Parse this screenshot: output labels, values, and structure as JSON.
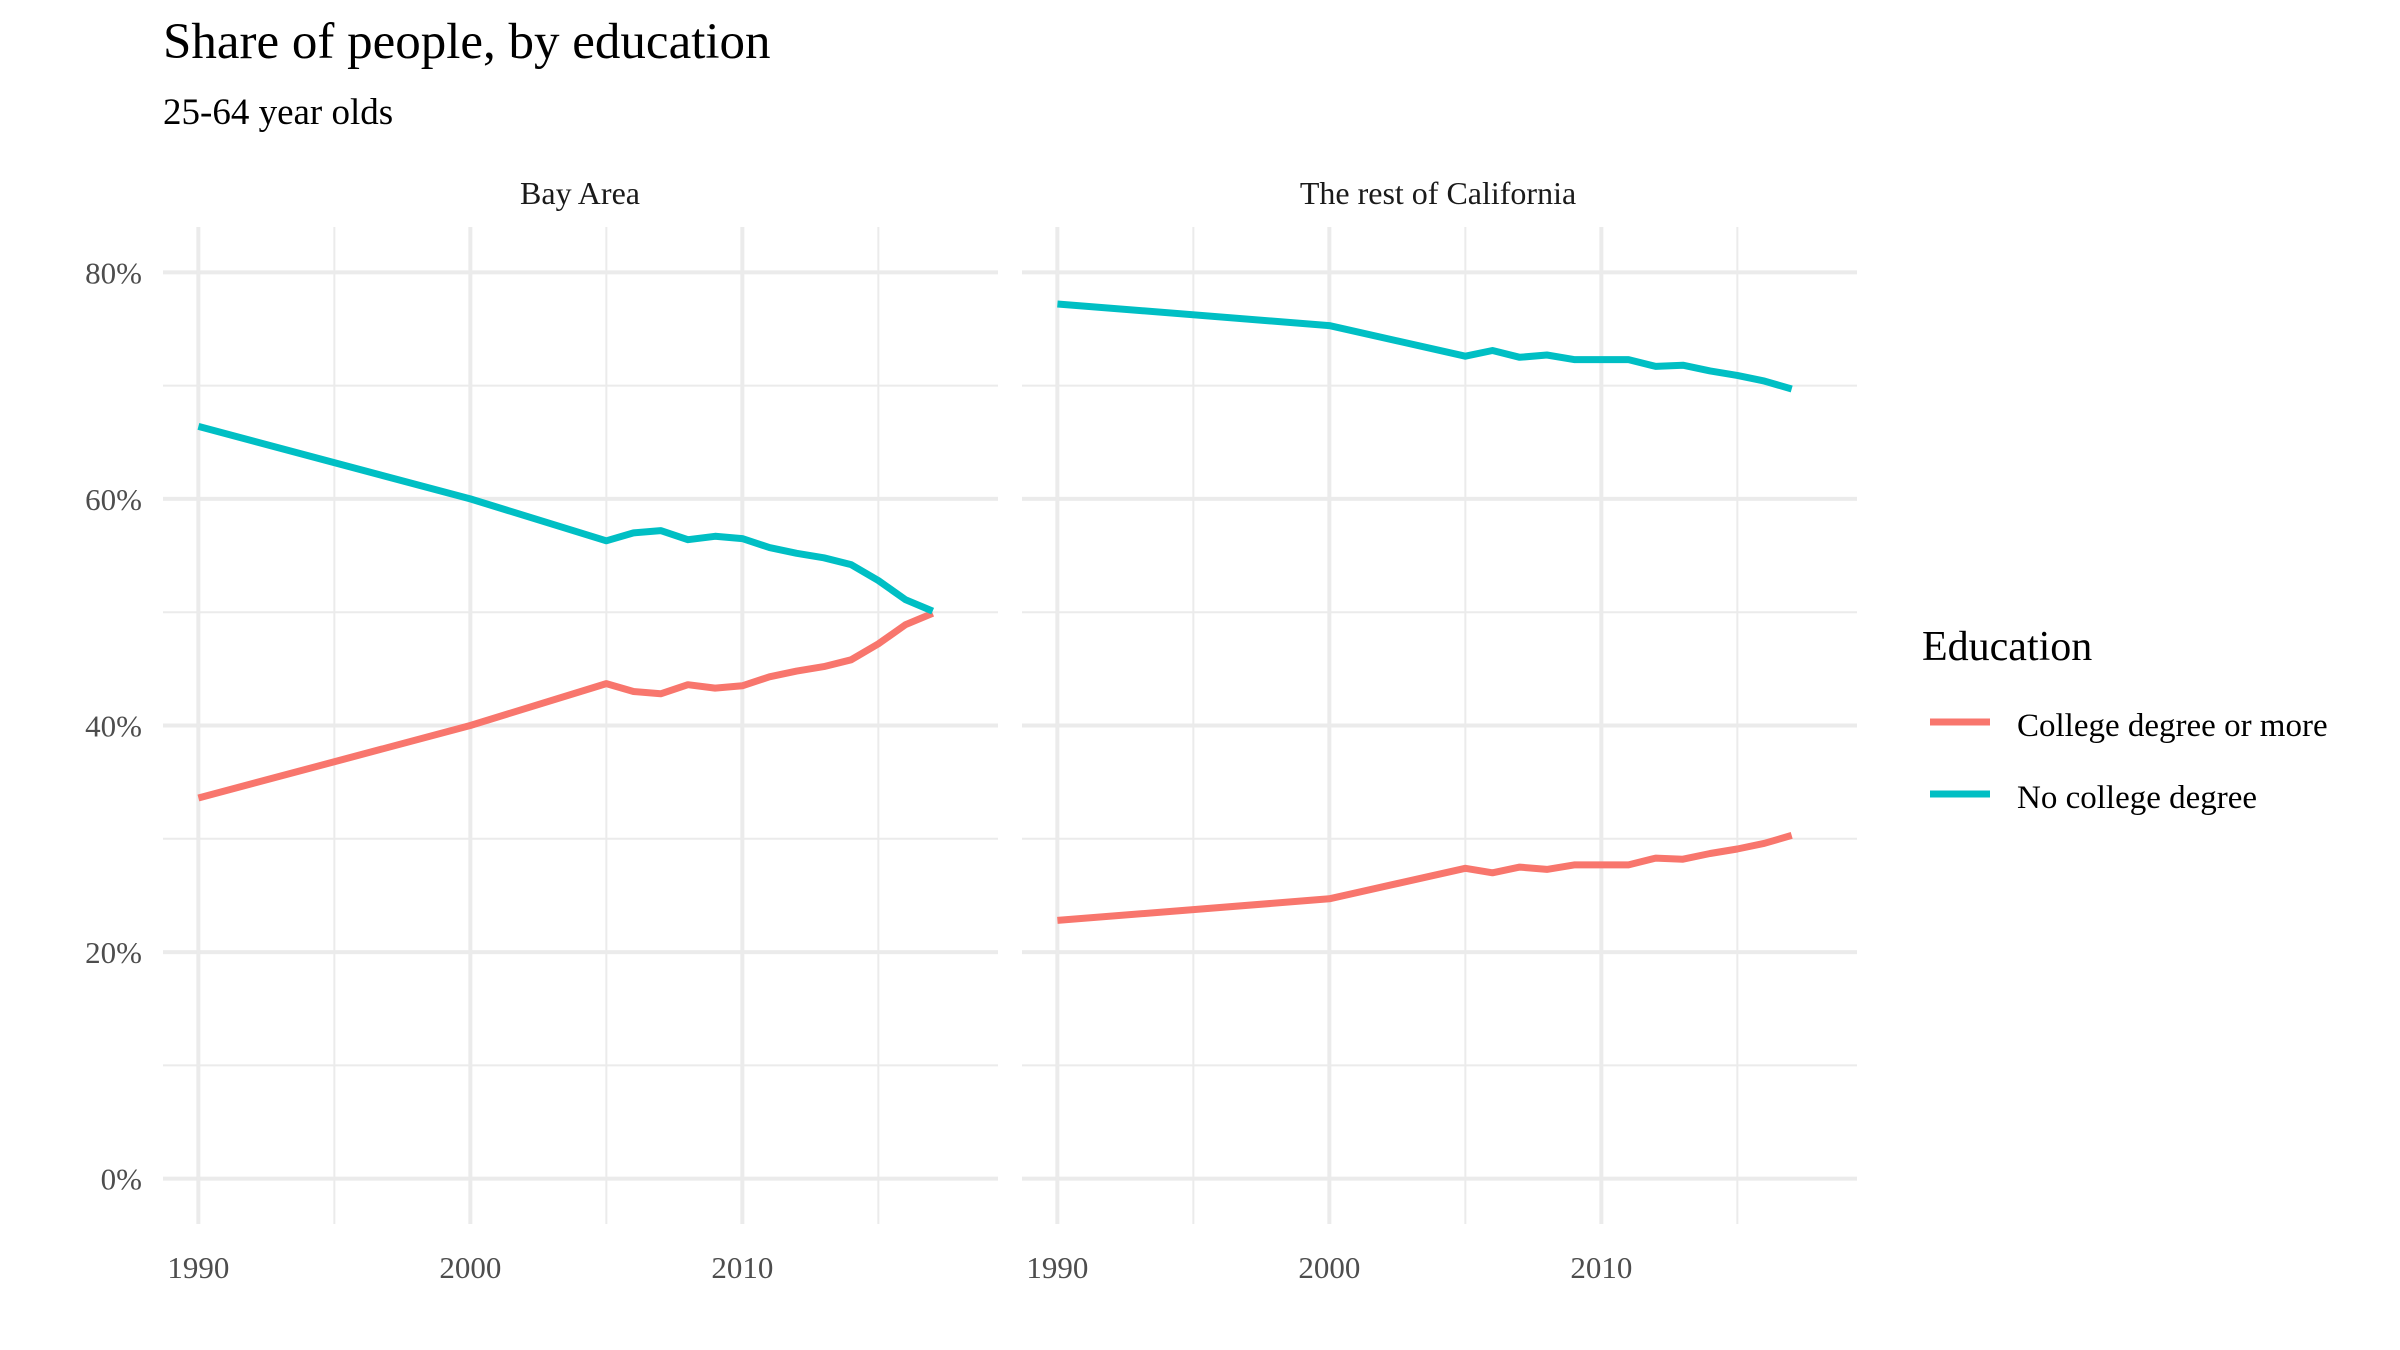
{
  "chart_data": {
    "type": "line",
    "title": "Share of people, by education",
    "subtitle": "25-64 year olds",
    "x_ticks": [
      "1990",
      "2000",
      "2010"
    ],
    "y_ticks": [
      "0%",
      "20%",
      "40%",
      "60%",
      "80%"
    ],
    "xlim": [
      1988.7,
      2019.4
    ],
    "ylim": [
      -0.04,
      0.84
    ],
    "grid": true,
    "legend": {
      "title": "Education",
      "position": "right",
      "entries": [
        {
          "label": "College degree or more",
          "color": "#F8766D"
        },
        {
          "label": "No college degree",
          "color": "#00BFC4"
        }
      ]
    },
    "panels": [
      {
        "label": "Bay Area",
        "x": [
          1990,
          2000,
          2005,
          2006,
          2007,
          2008,
          2009,
          2010,
          2011,
          2012,
          2013,
          2014,
          2015,
          2016,
          2017
        ],
        "series": [
          {
            "name": "College degree or more",
            "color": "#F8766D",
            "values": [
              0.336,
              0.4,
              0.437,
              0.43,
              0.428,
              0.436,
              0.433,
              0.435,
              0.443,
              0.448,
              0.452,
              0.458,
              0.472,
              0.489,
              0.499
            ]
          },
          {
            "name": "No college degree",
            "color": "#00BFC4",
            "values": [
              0.664,
              0.6,
              0.563,
              0.57,
              0.572,
              0.564,
              0.567,
              0.565,
              0.557,
              0.552,
              0.548,
              0.542,
              0.528,
              0.511,
              0.501
            ]
          }
        ]
      },
      {
        "label": "The rest of California",
        "x": [
          1990,
          2000,
          2005,
          2006,
          2007,
          2008,
          2009,
          2010,
          2011,
          2012,
          2013,
          2014,
          2015,
          2016,
          2017
        ],
        "series": [
          {
            "name": "College degree or more",
            "color": "#F8766D",
            "values": [
              0.228,
              0.247,
              0.274,
              0.27,
              0.275,
              0.273,
              0.277,
              0.277,
              0.277,
              0.283,
              0.282,
              0.287,
              0.291,
              0.296,
              0.303
            ]
          },
          {
            "name": "No college degree",
            "color": "#00BFC4",
            "values": [
              0.772,
              0.753,
              0.726,
              0.731,
              0.725,
              0.727,
              0.723,
              0.723,
              0.723,
              0.717,
              0.718,
              0.713,
              0.709,
              0.704,
              0.697
            ]
          }
        ]
      }
    ]
  }
}
